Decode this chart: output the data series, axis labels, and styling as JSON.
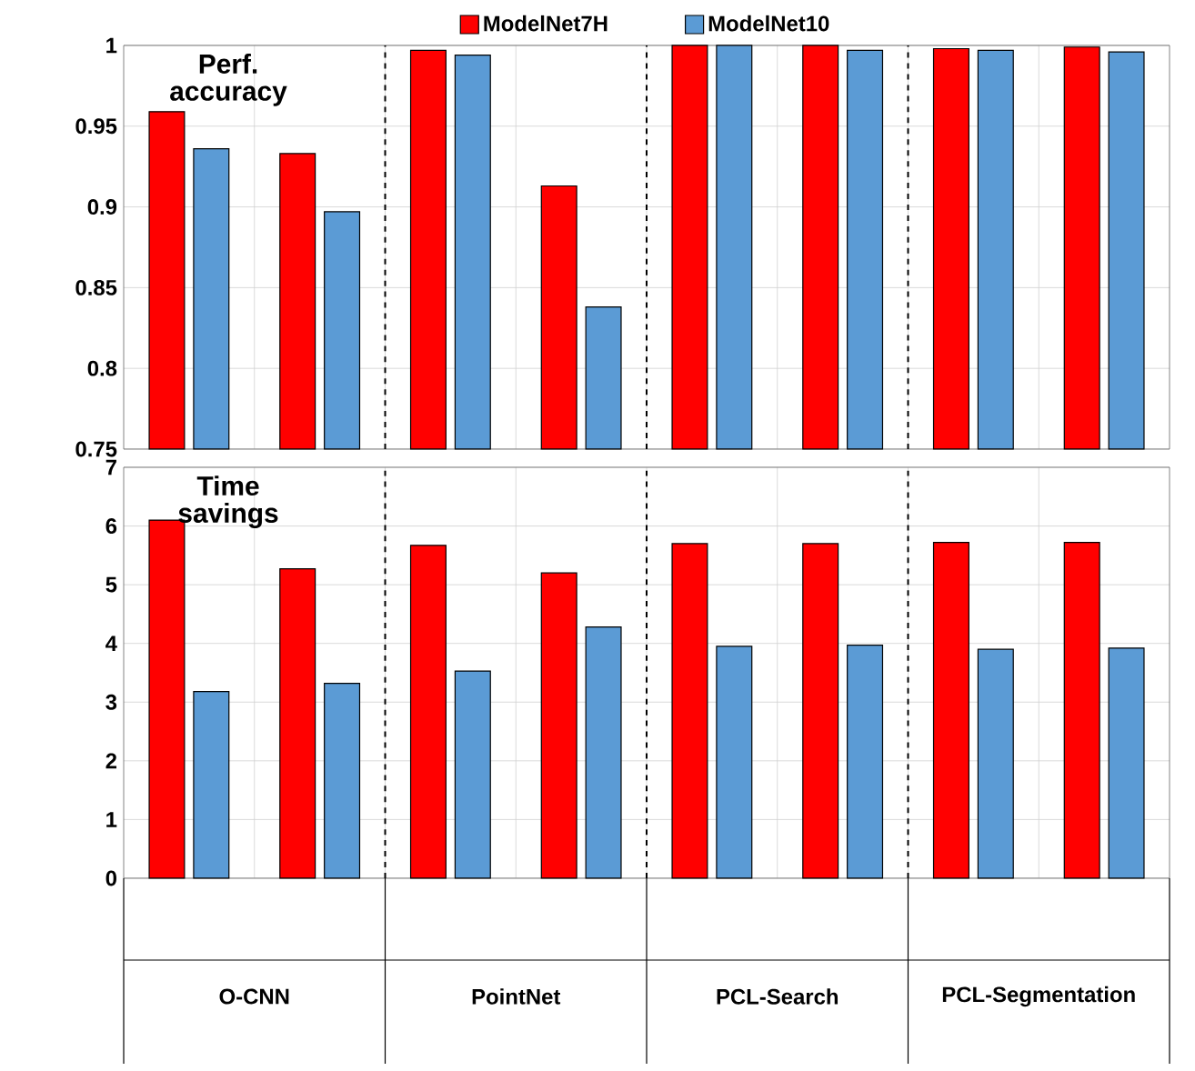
{
  "chart_data": [
    {
      "type": "bar",
      "categories": [
        null,
        null,
        null,
        null,
        null,
        null,
        null,
        null
      ],
      "series": [
        {
          "name": "ModelNet7H",
          "color": "#ff0000",
          "values": [
            0.959,
            0.933,
            0.997,
            0.913,
            1.0,
            1.0,
            0.998,
            0.999
          ]
        },
        {
          "name": "ModelNet10",
          "color": "#5b9bd5",
          "values": [
            0.936,
            0.897,
            0.994,
            0.838,
            1.0,
            0.997,
            0.997,
            0.996
          ]
        }
      ],
      "ylim": [
        0.75,
        1
      ],
      "yticks": [
        0.75,
        0.8,
        0.85,
        0.9,
        0.95,
        1
      ],
      "grid": true,
      "legend": "top",
      "tick_labels": "y",
      "annotations": [
        "Perf. accuracy"
      ]
    },
    {
      "type": "bar",
      "categories": [
        null,
        null,
        null,
        null,
        null,
        null,
        null,
        null
      ],
      "series": [
        {
          "color": "#ff0000",
          "values": [
            6.1,
            5.27,
            5.67,
            5.2,
            5.7,
            5.7,
            5.72,
            5.72
          ]
        },
        {
          "color": "#5b9bd5",
          "values": [
            3.18,
            3.32,
            3.53,
            4.28,
            3.95,
            3.97,
            3.9,
            3.92
          ]
        }
      ],
      "ylim": [
        0,
        7
      ],
      "yticks": [
        0,
        1,
        2,
        3,
        4,
        5,
        6,
        7
      ],
      "grid": true,
      "annotations": [
        "Time savings",
        "O-CNN",
        "PointNet",
        "PCL-Search",
        "PCL-Segmentation"
      ]
    }
  ]
}
